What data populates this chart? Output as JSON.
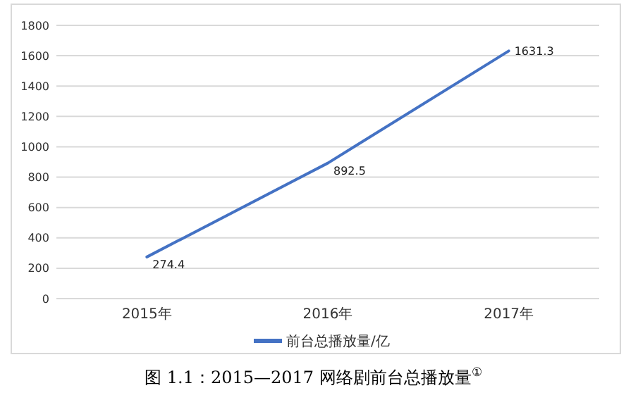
{
  "chart_data": {
    "type": "line",
    "title": "图 1.1：2015—2017 网络剧前台总播放量$^{①}$",
    "categories": [
      "2015年",
      "2016年",
      "2017年"
    ],
    "series": [
      {
        "name": "前台总播放量/亿",
        "color": "#4472c4",
        "values": [
          274.4,
          892.5,
          1631.3
        ]
      }
    ],
    "ylim": [
      0,
      1800
    ],
    "yticks": [
      0,
      200,
      400,
      600,
      800,
      1000,
      1200,
      1400,
      1600,
      1800
    ],
    "grid": "y",
    "legend": "bottom",
    "data_labels": true,
    "marker": "none",
    "line_style": "solid"
  }
}
